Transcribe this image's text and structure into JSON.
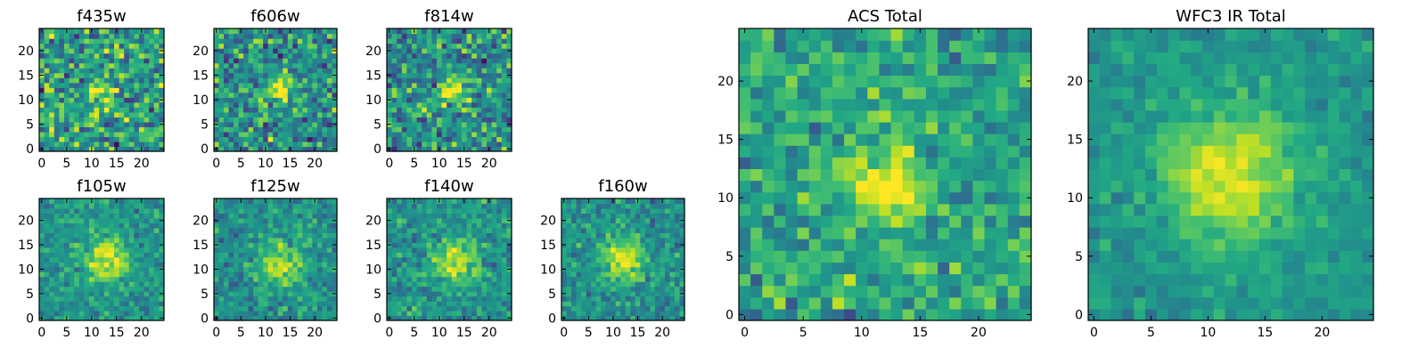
{
  "chart_data": {
    "type": "heatmap",
    "colormap": "viridis",
    "grid": false,
    "panels": [
      {
        "title": "f435w",
        "grid_size": [
          25,
          25
        ],
        "xticks": [
          "0",
          "5",
          "10",
          "15",
          "20"
        ],
        "yticks": [
          "0",
          "5",
          "10",
          "15",
          "20"
        ],
        "xlim": [
          -0.5,
          24.5
        ],
        "ylim": [
          -0.5,
          24.5
        ],
        "noise": 0.38,
        "peak_center": [
          12,
          12
        ],
        "peak_amplitude": 0.3,
        "peak_sigma": 2.0,
        "base": 0.55,
        "seed": 11
      },
      {
        "title": "f606w",
        "grid_size": [
          25,
          25
        ],
        "xticks": [
          "0",
          "5",
          "10",
          "15",
          "20"
        ],
        "yticks": [
          "0",
          "5",
          "10",
          "15",
          "20"
        ],
        "xlim": [
          -0.5,
          24.5
        ],
        "ylim": [
          -0.5,
          24.5
        ],
        "noise": 0.34,
        "peak_center": [
          13,
          12
        ],
        "peak_amplitude": 0.45,
        "peak_sigma": 2.0,
        "base": 0.5,
        "seed": 23
      },
      {
        "title": "f814w",
        "grid_size": [
          25,
          25
        ],
        "xticks": [
          "0",
          "5",
          "10",
          "15",
          "20"
        ],
        "yticks": [
          "0",
          "5",
          "10",
          "15",
          "20"
        ],
        "xlim": [
          -0.5,
          24.5
        ],
        "ylim": [
          -0.5,
          24.5
        ],
        "noise": 0.34,
        "peak_center": [
          13,
          12
        ],
        "peak_amplitude": 0.45,
        "peak_sigma": 2.0,
        "base": 0.5,
        "seed": 37
      },
      {
        "title": "f105w",
        "grid_size": [
          25,
          25
        ],
        "xticks": [
          "0",
          "5",
          "10",
          "15",
          "20"
        ],
        "yticks": [
          "0",
          "5",
          "10",
          "15",
          "20"
        ],
        "xlim": [
          -0.5,
          24.5
        ],
        "ylim": [
          -0.5,
          24.5
        ],
        "noise": 0.18,
        "peak_center": [
          13,
          12
        ],
        "peak_amplitude": 0.45,
        "peak_sigma": 3.0,
        "base": 0.52,
        "seed": 41
      },
      {
        "title": "f125w",
        "grid_size": [
          25,
          25
        ],
        "xticks": [
          "0",
          "5",
          "10",
          "15",
          "20"
        ],
        "yticks": [
          "0",
          "5",
          "10",
          "15",
          "20"
        ],
        "xlim": [
          -0.5,
          24.5
        ],
        "ylim": [
          -0.5,
          24.5
        ],
        "noise": 0.2,
        "peak_center": [
          13,
          11
        ],
        "peak_amplitude": 0.42,
        "peak_sigma": 3.0,
        "base": 0.5,
        "seed": 53
      },
      {
        "title": "f140w",
        "grid_size": [
          25,
          25
        ],
        "xticks": [
          "0",
          "5",
          "10",
          "15",
          "20"
        ],
        "yticks": [
          "0",
          "5",
          "10",
          "15",
          "20"
        ],
        "xlim": [
          -0.5,
          24.5
        ],
        "ylim": [
          -0.5,
          24.5
        ],
        "noise": 0.2,
        "peak_center": [
          13,
          12
        ],
        "peak_amplitude": 0.42,
        "peak_sigma": 3.0,
        "base": 0.52,
        "seed": 67
      },
      {
        "title": "f160w",
        "grid_size": [
          25,
          25
        ],
        "xticks": [
          "0",
          "5",
          "10",
          "15",
          "20"
        ],
        "yticks": [
          "0",
          "5",
          "10",
          "15",
          "20"
        ],
        "xlim": [
          -0.5,
          24.5
        ],
        "ylim": [
          -0.5,
          24.5
        ],
        "noise": 0.2,
        "peak_center": [
          12,
          12
        ],
        "peak_amplitude": 0.45,
        "peak_sigma": 3.0,
        "base": 0.5,
        "seed": 79
      },
      {
        "title": "ACS Total",
        "grid_size": [
          25,
          25
        ],
        "xticks": [
          "0",
          "5",
          "10",
          "15",
          "20"
        ],
        "yticks": [
          "0",
          "5",
          "10",
          "15",
          "20"
        ],
        "xlim": [
          -0.5,
          24.5
        ],
        "ylim": [
          -0.5,
          24.5
        ],
        "noise": 0.24,
        "peak_center": [
          12,
          11
        ],
        "peak_amplitude": 0.55,
        "peak_sigma": 2.0,
        "base": 0.58,
        "seed": 97
      },
      {
        "title": "WFC3 IR Total",
        "grid_size": [
          25,
          25
        ],
        "xticks": [
          "0",
          "5",
          "10",
          "15",
          "20"
        ],
        "yticks": [
          "0",
          "5",
          "10",
          "15",
          "20"
        ],
        "xlim": [
          -0.5,
          24.5
        ],
        "ylim": [
          -0.5,
          24.5
        ],
        "noise": 0.12,
        "peak_center": [
          12,
          12
        ],
        "peak_amplitude": 0.45,
        "peak_sigma": 4.0,
        "base": 0.52,
        "seed": 113
      }
    ]
  }
}
